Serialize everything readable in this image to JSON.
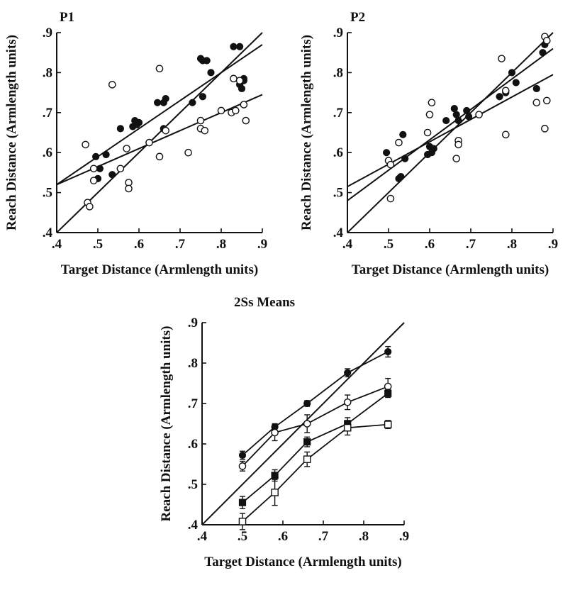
{
  "chart_data": [
    {
      "id": "p1",
      "type": "scatter",
      "title": "P1",
      "xlabel": "Target Distance (Armlength units)",
      "ylabel": "Reach Distance (Armlength units)",
      "xlim": [
        0.4,
        0.9
      ],
      "ylim": [
        0.4,
        0.9
      ],
      "xticks": [
        ".4",
        ".5",
        ".6",
        ".7",
        ".8",
        ".9"
      ],
      "yticks": [
        ".4",
        ".5",
        ".6",
        ".7",
        ".8",
        ".9"
      ],
      "series": [
        {
          "marker": "filled-circle",
          "points": [
            [
              0.495,
              0.59
            ],
            [
              0.505,
              0.56
            ],
            [
              0.5,
              0.535
            ],
            [
              0.52,
              0.595
            ],
            [
              0.535,
              0.545
            ],
            [
              0.555,
              0.66
            ],
            [
              0.585,
              0.665
            ],
            [
              0.59,
              0.68
            ],
            [
              0.595,
              0.67
            ],
            [
              0.6,
              0.675
            ],
            [
              0.645,
              0.725
            ],
            [
              0.66,
              0.725
            ],
            [
              0.665,
              0.735
            ],
            [
              0.66,
              0.66
            ],
            [
              0.73,
              0.725
            ],
            [
              0.75,
              0.835
            ],
            [
              0.755,
              0.83
            ],
            [
              0.755,
              0.74
            ],
            [
              0.765,
              0.83
            ],
            [
              0.775,
              0.8
            ],
            [
              0.83,
              0.865
            ],
            [
              0.845,
              0.865
            ],
            [
              0.845,
              0.77
            ],
            [
              0.85,
              0.76
            ],
            [
              0.855,
              0.78
            ],
            [
              0.855,
              0.785
            ]
          ]
        },
        {
          "marker": "open-circle",
          "points": [
            [
              0.47,
              0.62
            ],
            [
              0.475,
              0.475
            ],
            [
              0.48,
              0.465
            ],
            [
              0.49,
              0.56
            ],
            [
              0.49,
              0.53
            ],
            [
              0.535,
              0.77
            ],
            [
              0.555,
              0.56
            ],
            [
              0.57,
              0.61
            ],
            [
              0.575,
              0.525
            ],
            [
              0.575,
              0.51
            ],
            [
              0.625,
              0.625
            ],
            [
              0.65,
              0.59
            ],
            [
              0.65,
              0.81
            ],
            [
              0.665,
              0.655
            ],
            [
              0.72,
              0.6
            ],
            [
              0.75,
              0.68
            ],
            [
              0.75,
              0.66
            ],
            [
              0.76,
              0.655
            ],
            [
              0.8,
              0.705
            ],
            [
              0.825,
              0.7
            ],
            [
              0.83,
              0.785
            ],
            [
              0.835,
              0.705
            ],
            [
              0.845,
              0.78
            ],
            [
              0.855,
              0.72
            ],
            [
              0.86,
              0.68
            ]
          ]
        }
      ],
      "fit_lines": [
        [
          [
            0.4,
            0.4
          ],
          [
            0.9,
            0.9
          ]
        ],
        [
          [
            0.4,
            0.52
          ],
          [
            0.9,
            0.87
          ]
        ],
        [
          [
            0.4,
            0.52
          ],
          [
            0.9,
            0.745
          ]
        ]
      ]
    },
    {
      "id": "p2",
      "type": "scatter",
      "title": "P2",
      "xlabel": "Target Distance (Armlength units)",
      "ylabel": "Reach Distance (Armlength units)",
      "xlim": [
        0.4,
        0.9
      ],
      "ylim": [
        0.4,
        0.9
      ],
      "xticks": [
        ".4",
        ".5",
        ".6",
        ".7",
        ".8",
        ".9"
      ],
      "yticks": [
        ".4",
        ".5",
        ".6",
        ".7",
        ".8",
        ".9"
      ],
      "series": [
        {
          "marker": "filled-circle",
          "points": [
            [
              0.495,
              0.6
            ],
            [
              0.525,
              0.535
            ],
            [
              0.53,
              0.54
            ],
            [
              0.535,
              0.645
            ],
            [
              0.54,
              0.585
            ],
            [
              0.595,
              0.595
            ],
            [
              0.6,
              0.615
            ],
            [
              0.605,
              0.6
            ],
            [
              0.61,
              0.61
            ],
            [
              0.64,
              0.68
            ],
            [
              0.66,
              0.71
            ],
            [
              0.665,
              0.695
            ],
            [
              0.67,
              0.68
            ],
            [
              0.69,
              0.705
            ],
            [
              0.695,
              0.69
            ],
            [
              0.77,
              0.74
            ],
            [
              0.785,
              0.75
            ],
            [
              0.8,
              0.8
            ],
            [
              0.81,
              0.775
            ],
            [
              0.86,
              0.76
            ],
            [
              0.875,
              0.85
            ],
            [
              0.88,
              0.87
            ]
          ]
        },
        {
          "marker": "open-circle",
          "points": [
            [
              0.5,
              0.58
            ],
            [
              0.505,
              0.485
            ],
            [
              0.505,
              0.57
            ],
            [
              0.525,
              0.625
            ],
            [
              0.595,
              0.65
            ],
            [
              0.6,
              0.695
            ],
            [
              0.605,
              0.725
            ],
            [
              0.665,
              0.585
            ],
            [
              0.67,
              0.63
            ],
            [
              0.67,
              0.62
            ],
            [
              0.72,
              0.695
            ],
            [
              0.775,
              0.835
            ],
            [
              0.785,
              0.755
            ],
            [
              0.785,
              0.645
            ],
            [
              0.86,
              0.725
            ],
            [
              0.88,
              0.89
            ],
            [
              0.885,
              0.73
            ],
            [
              0.88,
              0.66
            ],
            [
              0.885,
              0.88
            ]
          ]
        }
      ],
      "fit_lines": [
        [
          [
            0.4,
            0.4
          ],
          [
            0.9,
            0.9
          ]
        ],
        [
          [
            0.4,
            0.48
          ],
          [
            0.9,
            0.86
          ]
        ],
        [
          [
            0.4,
            0.515
          ],
          [
            0.9,
            0.795
          ]
        ]
      ]
    },
    {
      "id": "means",
      "type": "line",
      "title": "2Ss Means",
      "xlabel": "Target Distance (Armlength units)",
      "ylabel": "Reach Distance (Armlength units)",
      "xlim": [
        0.4,
        0.9
      ],
      "ylim": [
        0.4,
        0.9
      ],
      "xticks": [
        ".4",
        ".5",
        ".6",
        ".7",
        ".8",
        ".9"
      ],
      "yticks": [
        ".4",
        ".5",
        ".6",
        ".7",
        ".8",
        ".9"
      ],
      "x": [
        0.5,
        0.58,
        0.66,
        0.76,
        0.86
      ],
      "series": [
        {
          "marker": "filled-circle",
          "values": [
            0.572,
            0.642,
            0.7,
            0.776,
            0.828
          ],
          "errors": [
            0.01,
            0.008,
            0.007,
            0.01,
            0.013
          ]
        },
        {
          "marker": "open-circle",
          "values": [
            0.545,
            0.628,
            0.65,
            0.703,
            0.742
          ],
          "errors": [
            0.012,
            0.02,
            0.022,
            0.018,
            0.02
          ]
        },
        {
          "marker": "filled-square",
          "values": [
            0.455,
            0.522,
            0.605,
            0.65,
            0.725
          ],
          "errors": [
            0.015,
            0.014,
            0.012,
            0.015,
            0.01
          ]
        },
        {
          "marker": "open-square",
          "values": [
            0.408,
            0.48,
            0.562,
            0.64,
            0.648
          ],
          "errors": [
            0.02,
            0.032,
            0.018,
            0.018,
            0.01
          ]
        }
      ],
      "fit_lines": [
        [
          [
            0.4,
            0.4
          ],
          [
            0.9,
            0.9
          ]
        ]
      ]
    }
  ]
}
